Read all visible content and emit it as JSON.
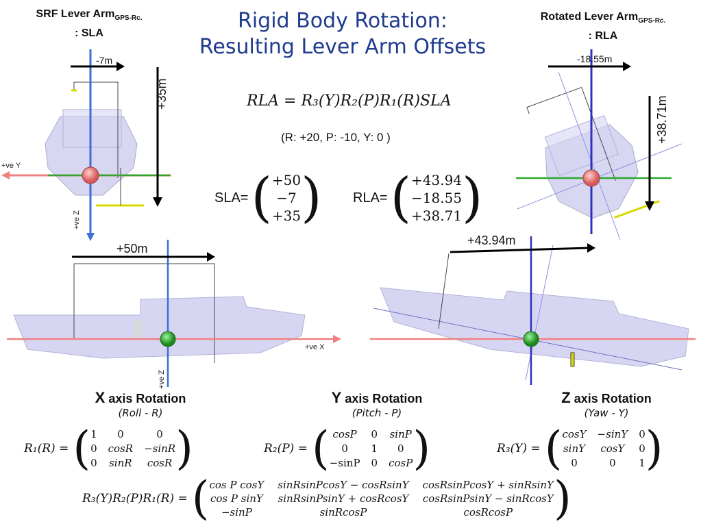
{
  "title": {
    "line1": "Rigid Body Rotation:",
    "line2": "Resulting Lever Arm Offsets"
  },
  "left_header": {
    "main": "SRF Lever Arm",
    "sub": "GPS-Rc.",
    "line2": ": SLA"
  },
  "right_header": {
    "main": "Rotated Lever Arm",
    "sub": "GPS-Rc.",
    "line2": ": RLA"
  },
  "equation": "RLA = R₃(Y)R₂(P)R₁(R)SLA",
  "params": "(R: +20, P: -10, Y: 0 )",
  "sla": {
    "label": "SLA=",
    "values": [
      "+50",
      "−7",
      "+35"
    ]
  },
  "rla": {
    "label": "RLA=",
    "values": [
      "+43.94",
      "−18.55",
      "+38.71"
    ]
  },
  "diagram_labels": {
    "tl_y": "-7m",
    "tl_z": "+35m",
    "tl_posY": "+ve Y",
    "tl_posZ": "+ve Z",
    "tr_y": "-18.55m",
    "tr_z": "+38.71m",
    "bl_x": "+50m",
    "bl_posX": "+ve X",
    "bl_posZ": "+ve Z",
    "br_x": "+43.94m"
  },
  "x_axis": {
    "head_big": "X",
    "head": " axis Rotation",
    "sub": "(Roll - R)",
    "name": "R₁(R) =",
    "matrix": [
      "1",
      "0",
      "0",
      "0",
      "cosR",
      "−sinR",
      "0",
      "sinR",
      "cosR"
    ]
  },
  "y_axis": {
    "head_big": "Y",
    "head": " axis Rotation",
    "sub": "(Pitch - P)",
    "name": "R₂(P) =",
    "matrix": [
      "cosP",
      "0",
      "sinP",
      "0",
      "1",
      "0",
      "−sinP",
      "0",
      "cosP"
    ]
  },
  "z_axis": {
    "head_big": "Z",
    "head": " axis Rotation",
    "sub": "(Yaw - Y)",
    "name": "R₃(Y) =",
    "matrix": [
      "cosY",
      "−sinY",
      "0",
      "sinY",
      "cosY",
      "0",
      "0",
      "0",
      "1"
    ]
  },
  "combined": {
    "name": "R₃(Y)R₂(P)R₁(R) =",
    "matrix": [
      "cos P cosY",
      "sinRsinPcosY − cosRsinY",
      "cosRsinPcosY + sinRsinY",
      "cos P sinY",
      "sinRsinPsinY + cosRcosY",
      "cosRsinPsinY − sinRcosY",
      "−sinP",
      "sinRcosP",
      "cosRcosP"
    ]
  }
}
